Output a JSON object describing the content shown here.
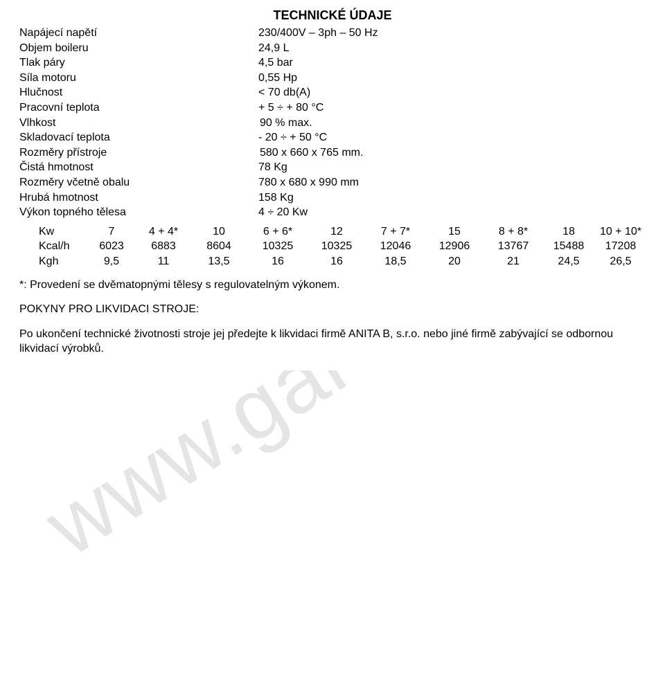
{
  "title": "TECHNICKÉ ÚDAJE",
  "specs": [
    {
      "label": "Napájecí napětí",
      "value": "230/400V – 3ph – 50 Hz"
    },
    {
      "label": "Objem boileru",
      "value": "24,9 L"
    },
    {
      "label": "Tlak páry",
      "value": "4,5 bar"
    },
    {
      "label": "Síla motoru",
      "value": "0,55 Hp"
    },
    {
      "label": "Hlučnost",
      "value": "< 70 db(A)"
    },
    {
      "label": "Pracovní teplota",
      "value": "+ 5 ÷ + 80 °C"
    },
    {
      "label": "Vlhkost",
      "value": " 90 % max."
    },
    {
      "label": "Skladovací teplota",
      "value": "- 20 ÷ + 50 °C"
    },
    {
      "label": "Rozměry přístroje",
      "value": " 580 x 660 x 765 mm."
    },
    {
      "label": "Čistá hmotnost",
      "value": "78 Kg"
    },
    {
      "label": "Rozměry včetně obalu",
      "value": "780 x 680 x 990 mm"
    },
    {
      "label": "Hrubá hmotnost",
      "value": "158 Kg"
    },
    {
      "label": "Výkon topného tělesa",
      "value": "4 ÷ 20 Kw"
    }
  ],
  "table": {
    "rows": [
      {
        "label": "Kw",
        "cells": [
          "7",
          "4 + 4*",
          "10",
          "6 + 6*",
          "12",
          "7 + 7*",
          "15",
          "8 + 8*",
          "18",
          "10 + 10*"
        ]
      },
      {
        "label": "Kcal/h",
        "cells": [
          "6023",
          "6883",
          "8604",
          "10325",
          "10325",
          "12046",
          "12906",
          "13767",
          "15488",
          "17208"
        ]
      },
      {
        "label": "Kgh",
        "cells": [
          "9,5",
          "11",
          "13,5",
          "16",
          "16",
          "18,5",
          "20",
          "21",
          "24,5",
          "26,5"
        ]
      }
    ]
  },
  "notes": {
    "star": "*: Provedení se dvěmatopnými tělesy s regulovatelným výkonem.",
    "disposal_title": "POKYNY PRO LIKVIDACI STROJE:",
    "disposal_body": "Po ukončení technické životnosti stroje jej předejte k likvidaci firmě ANITA B, s.r.o. nebo jiné firmě  zabývající se odbornou likvidací výrobků."
  },
  "watermark": "www.garudan.cz",
  "colors": {
    "text": "#000000",
    "background": "#ffffff",
    "watermark": "#e5e5e5"
  },
  "fonts": {
    "family": "Arial",
    "title_size_pt": 14,
    "body_size_pt": 12
  }
}
